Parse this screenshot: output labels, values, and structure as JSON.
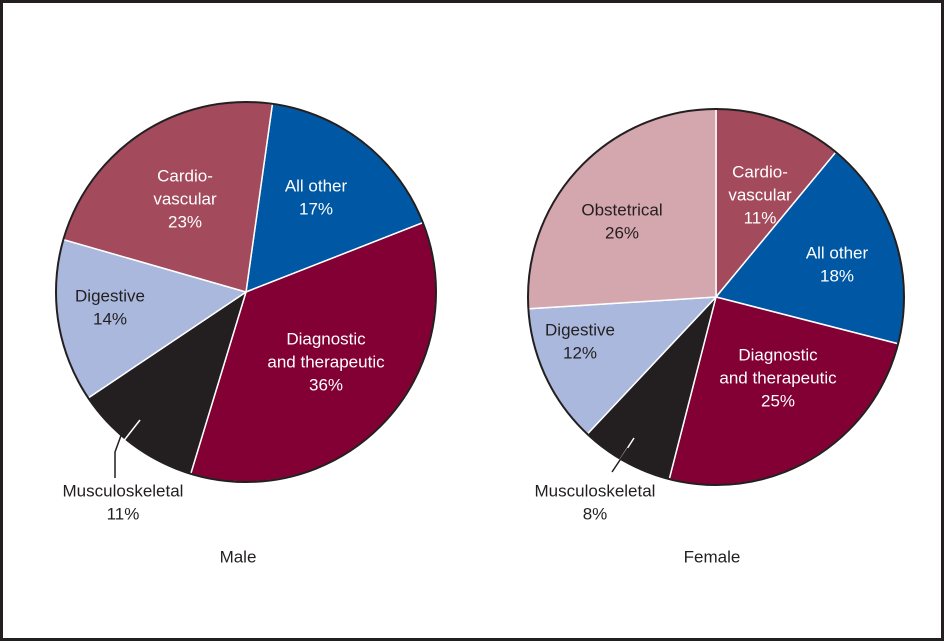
{
  "chart_data": [
    {
      "type": "pie",
      "title": "Male",
      "categories": [
        [
          "All other"
        ],
        [
          "Diagnostic",
          "and therapeutic"
        ],
        [
          "Musculoskeletal"
        ],
        [
          "Digestive"
        ],
        [
          "Cardio-",
          "vascular"
        ]
      ],
      "values": [
        17,
        36,
        11,
        14,
        23
      ],
      "value_labels": [
        "17%",
        "36%",
        "11%",
        "14%",
        "23%"
      ],
      "colors": [
        "#0057a3",
        "#820033",
        "#231f20",
        "#a9b8dc",
        "#a34a5c"
      ]
    },
    {
      "type": "pie",
      "title": "Female",
      "categories": [
        [
          "Cardio-",
          "vascular"
        ],
        [
          "All other"
        ],
        [
          "Diagnostic",
          "and therapeutic"
        ],
        [
          "Musculoskeletal"
        ],
        [
          "Digestive"
        ],
        [
          "Obstetrical"
        ]
      ],
      "values": [
        11,
        18,
        25,
        8,
        12,
        26
      ],
      "value_labels": [
        "11%",
        "18%",
        "25%",
        "8%",
        "12%",
        "26%"
      ],
      "colors": [
        "#a34a5c",
        "#0057a3",
        "#820033",
        "#231f20",
        "#a9b8dc",
        "#d4a6ae"
      ]
    }
  ]
}
